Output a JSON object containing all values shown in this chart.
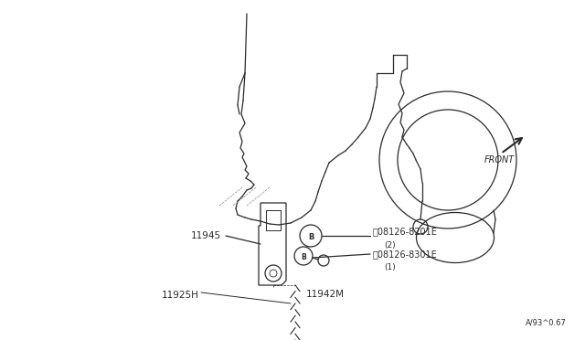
{
  "bg_color": "#ffffff",
  "line_color": "#2a2a2a",
  "text_color": "#2a2a2a",
  "labels": {
    "11945": "11945",
    "11925H": "11925H",
    "11942M": "11942M",
    "bolt1_label": "08126-8201E",
    "bolt1_qty": "(2)",
    "bolt2_label": "08126-8301E",
    "bolt2_qty": "(1)",
    "front_label": "FRONT",
    "diagram_ref": "A/93^0.67"
  }
}
